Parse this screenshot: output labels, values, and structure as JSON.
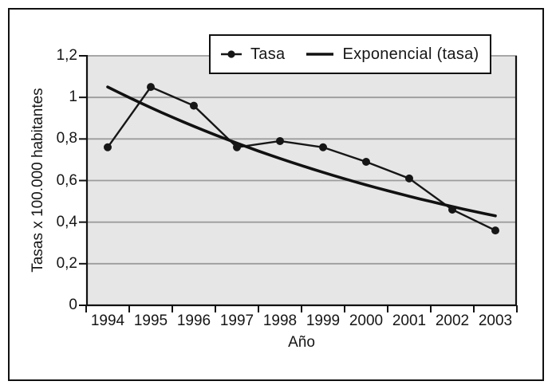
{
  "figure": {
    "type": "statistical line chart",
    "x_axis_title": "Año",
    "y_axis_title": "Tasas x 100.000 habitantes"
  },
  "legend": {
    "items": [
      {
        "label": "Tasa",
        "marker": "line-with-dot-marker"
      },
      {
        "label": "Exponencial (tasa)",
        "marker": "thick-solid-line"
      }
    ]
  },
  "chart_data": {
    "type": "line",
    "title": "",
    "xlabel": "Año",
    "ylabel": "Tasas x 100.000 habitantes",
    "categories": [
      "1994",
      "1995",
      "1996",
      "1997",
      "1998",
      "1999",
      "2000",
      "2001",
      "2002",
      "2003"
    ],
    "series": [
      {
        "name": "Tasa",
        "style": "line-with-markers",
        "values": [
          0.76,
          1.05,
          0.96,
          0.76,
          0.79,
          0.76,
          0.69,
          0.61,
          0.46,
          0.36
        ]
      },
      {
        "name": "Exponencial (tasa)",
        "style": "exponential-trendline",
        "start_value": 1.05,
        "end_value": 0.43
      }
    ],
    "ylim": [
      0,
      1.2
    ],
    "y_ticks": [
      {
        "value": 0.0,
        "label": "0"
      },
      {
        "value": 0.2,
        "label": "0,2"
      },
      {
        "value": 0.4,
        "label": "0,4"
      },
      {
        "value": 0.6,
        "label": "0,6"
      },
      {
        "value": 0.8,
        "label": "0,8"
      },
      {
        "value": 1.0,
        "label": "1"
      },
      {
        "value": 1.2,
        "label": "1,2"
      }
    ],
    "decimal_separator": ",",
    "grid": "horizontal",
    "legend_position": "inside-top-center"
  },
  "colors": {
    "background": "#ffffff",
    "frame_border": "#111111",
    "plot_background": "#e6e6e6",
    "gridline": "#9c9c9c",
    "axis": "#111111",
    "series_line": "#161616",
    "trend_line": "#111111",
    "legend_background": "#ffffff"
  }
}
